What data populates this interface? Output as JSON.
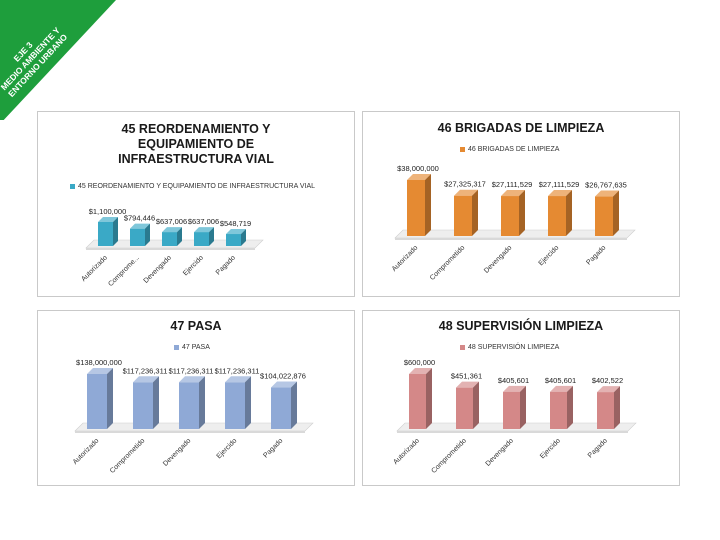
{
  "banner": {
    "line1": "EJE 3",
    "line2": "MEDIO AMBIENTE Y",
    "line3": "ENTORNO URBANO",
    "color": "#1e9e3c"
  },
  "chart_data": [
    {
      "type": "bar",
      "title": "45 REORDENAMIENTO Y EQUIPAMIENTO DE INFRAESTRUCTURA VIAL",
      "title_lines": [
        "45 REORDENAMIENTO Y",
        "EQUIPAMIENTO DE",
        "INFRAESTRUCTURA VIAL"
      ],
      "categories": [
        "Autorizado",
        "Comprometido",
        "Devengado",
        "Ejercido",
        "Pagado"
      ],
      "tick_labels": [
        "Autorizado",
        "Comprome...",
        "Devengado",
        "Ejercido",
        "Pagado"
      ],
      "series": [
        {
          "name": "45 REORDENAMIENTO Y EQUIPAMIENTO DE INFRAESTRUCTURA VIAL",
          "values": [
            1100000,
            794446,
            637006,
            637006,
            548719
          ]
        }
      ],
      "data_labels": [
        "$1,100,000",
        "$794,446",
        "$637,006",
        "$637,006",
        "$548,719"
      ],
      "color": "#3aa9c6",
      "legend_position": "top-left",
      "ylim": [
        0,
        1100000
      ],
      "grid": false
    },
    {
      "type": "bar",
      "title": "46 BRIGADAS DE LIMPIEZA",
      "title_lines": [
        "46 BRIGADAS DE LIMPIEZA"
      ],
      "categories": [
        "Autorizado",
        "Comprometido",
        "Devengado",
        "Ejercido",
        "Pagado"
      ],
      "tick_labels": [
        "Autorizado",
        "Comprometido",
        "Devengado",
        "Ejercido",
        "Pagado"
      ],
      "series": [
        {
          "name": "46 BRIGADAS DE LIMPIEZA",
          "values": [
            38000000,
            27325317,
            27111529,
            27111529,
            26767635
          ]
        }
      ],
      "data_labels": [
        "$38,000,000",
        "$27,325,317",
        "$27,111,529",
        "$27,111,529",
        "$26,767,635"
      ],
      "color": "#e58a32",
      "legend_position": "top",
      "ylim": [
        0,
        38000000
      ],
      "grid": false
    },
    {
      "type": "bar",
      "title": "47 PASA",
      "title_lines": [
        "47 PASA"
      ],
      "categories": [
        "Autorizado",
        "Comprometido",
        "Devengado",
        "Ejercido",
        "Pagado"
      ],
      "tick_labels": [
        "Autorizado",
        "Comprometido",
        "Devengado",
        "Ejercido",
        "Pagado"
      ],
      "series": [
        {
          "name": "47 PASA",
          "values": [
            138000000,
            117236311,
            117236311,
            117236311,
            104022876
          ]
        }
      ],
      "data_labels": [
        "$138,000,000",
        "$117,236,311",
        "$117,236,311",
        "$117,236,311",
        "$104,022,876"
      ],
      "color": "#8fa9d6",
      "legend_position": "top",
      "ylim": [
        0,
        138000000
      ],
      "grid": false
    },
    {
      "type": "bar",
      "title": "48 SUPERVISIÓN LIMPIEZA",
      "title_lines": [
        "48 SUPERVISIÓN LIMPIEZA"
      ],
      "categories": [
        "Autorizado",
        "Comprometido",
        "Devengado",
        "Ejercido",
        "Pagado"
      ],
      "tick_labels": [
        "Autorizado",
        "Comprometido",
        "Devengado",
        "Ejercido",
        "Pagado"
      ],
      "series": [
        {
          "name": "48 SUPERVISIÓN LIMPIEZA",
          "values": [
            600000,
            451361,
            405601,
            405601,
            402522
          ]
        }
      ],
      "data_labels": [
        "$600,000",
        "$451,361",
        "$405,601",
        "$405,601",
        "$402,522"
      ],
      "color": "#d48888",
      "legend_position": "top",
      "ylim": [
        0,
        600000
      ],
      "grid": false
    }
  ]
}
